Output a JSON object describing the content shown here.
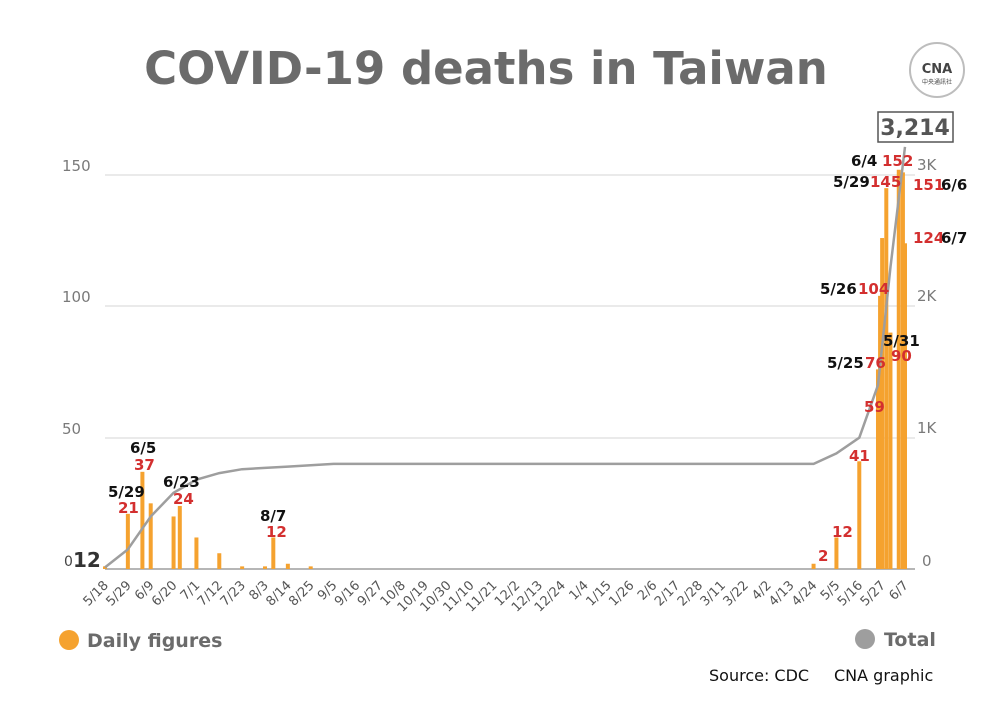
{
  "logo": {
    "text": "CNA",
    "sub": "中央通訊社"
  },
  "legend": {
    "daily_label": "Daily figures",
    "total_label": "Total",
    "daily_color": "#f5a22f",
    "total_color": "#9e9e9e"
  },
  "footer": {
    "source": "Source: CDC",
    "credit": "CNA graphic"
  },
  "chart_data": {
    "type": "bar",
    "title": "COVID-19 deaths in Taiwan",
    "y_left": {
      "ticks": [
        "150",
        "100",
        "50",
        "0"
      ],
      "tick_values": [
        150,
        100,
        50,
        0
      ],
      "ylim": [
        0,
        150
      ]
    },
    "y_right": {
      "ticks": [
        "3K",
        "2K",
        "1K",
        "0"
      ],
      "tick_values": [
        3000,
        2000,
        1000,
        0
      ],
      "ylim": [
        0,
        3000
      ]
    },
    "x_tick_labels": [
      "5/18",
      "5/29",
      "6/9",
      "6/20",
      "7/1",
      "7/12",
      "7/23",
      "8/3",
      "8/14",
      "8/25",
      "9/5",
      "9/16",
      "9/27",
      "10/8",
      "10/19",
      "10/30",
      "11/10",
      "11/21",
      "12/2",
      "12/13",
      "12/24",
      "1/4",
      "1/15",
      "1/26",
      "2/6",
      "2/17",
      "2/28",
      "3/11",
      "3/22",
      "4/2",
      "4/13",
      "4/24",
      "5/5",
      "5/16",
      "5/27",
      "6/7"
    ],
    "start_value": {
      "left": "0",
      "right": "12"
    },
    "series": [
      {
        "name": "Daily figures",
        "type": "bar",
        "color": "#f5a22f",
        "x": [
          "5/18",
          "5/29",
          "6/5",
          "6/9",
          "6/20",
          "6/23",
          "7/1",
          "7/12",
          "7/23",
          "8/3",
          "8/7",
          "8/14",
          "8/25",
          "4/24",
          "5/5",
          "5/16",
          "5/25",
          "5/26",
          "5/27",
          "5/29",
          "5/31",
          "6/4",
          "6/6",
          "6/7"
        ],
        "values": [
          1,
          21,
          37,
          25,
          20,
          24,
          12,
          6,
          1,
          1,
          12,
          2,
          1,
          2,
          12,
          41,
          76,
          104,
          126,
          145,
          90,
          152,
          151,
          124
        ]
      },
      {
        "name": "Total",
        "type": "line",
        "color": "#9e9e9e",
        "x": [
          "5/18",
          "5/29",
          "6/9",
          "6/20",
          "7/1",
          "7/12",
          "7/23",
          "8/3",
          "8/14",
          "8/25",
          "9/5",
          "4/24",
          "5/5",
          "5/16",
          "5/25",
          "5/31",
          "6/7"
        ],
        "values": [
          12,
          150,
          400,
          580,
          680,
          730,
          760,
          770,
          780,
          790,
          800,
          800,
          880,
          1000,
          1400,
          2300,
          3214
        ]
      }
    ],
    "annotations": [
      {
        "date": "5/29",
        "value": "21"
      },
      {
        "date": "6/5",
        "value": "37"
      },
      {
        "date": "6/23",
        "value": "24"
      },
      {
        "date": "8/7",
        "value": "12"
      },
      {
        "date": "",
        "value": "2"
      },
      {
        "date": "",
        "value": "12"
      },
      {
        "date": "",
        "value": "41"
      },
      {
        "date": "",
        "value": "59"
      },
      {
        "date": "5/25",
        "value": "76"
      },
      {
        "date": "5/26",
        "value": "104"
      },
      {
        "date": "5/29",
        "value": "145"
      },
      {
        "date": "5/31",
        "value": "90"
      },
      {
        "date": "6/4",
        "value": "152"
      },
      {
        "date": "6/6",
        "value": "151"
      },
      {
        "date": "6/7",
        "value": "124"
      }
    ],
    "total_label": "3,214",
    "grid": true,
    "legend_position": "bottom"
  }
}
